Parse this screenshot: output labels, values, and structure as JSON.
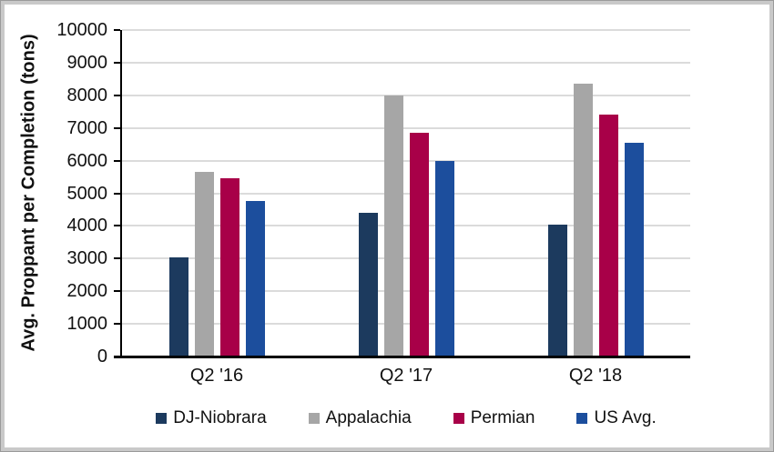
{
  "chart_data": {
    "type": "bar",
    "title": "",
    "xlabel": "",
    "ylabel": "Avg. Proppant per Completion (tons)",
    "categories": [
      "Q2 '16",
      "Q2 '17",
      "Q2 '18"
    ],
    "series": [
      {
        "name": "DJ-Niobrara",
        "color": "#1C3A5E",
        "values": [
          3050,
          4400,
          4050
        ]
      },
      {
        "name": "Appalachia",
        "color": "#A6A6A6",
        "values": [
          5650,
          8000,
          8350
        ]
      },
      {
        "name": "Permian",
        "color": "#A80048",
        "values": [
          5450,
          6850,
          7400
        ]
      },
      {
        "name": "US Avg.",
        "color": "#1C4E9D",
        "values": [
          4750,
          6000,
          6550
        ]
      }
    ],
    "ylim": [
      0,
      10000
    ],
    "yticks": [
      0,
      1000,
      2000,
      3000,
      4000,
      5000,
      6000,
      7000,
      8000,
      9000,
      10000
    ],
    "grid": true,
    "gridline_color": "#dbdbdb",
    "axis_color": "#000000",
    "legend_position": "bottom"
  }
}
